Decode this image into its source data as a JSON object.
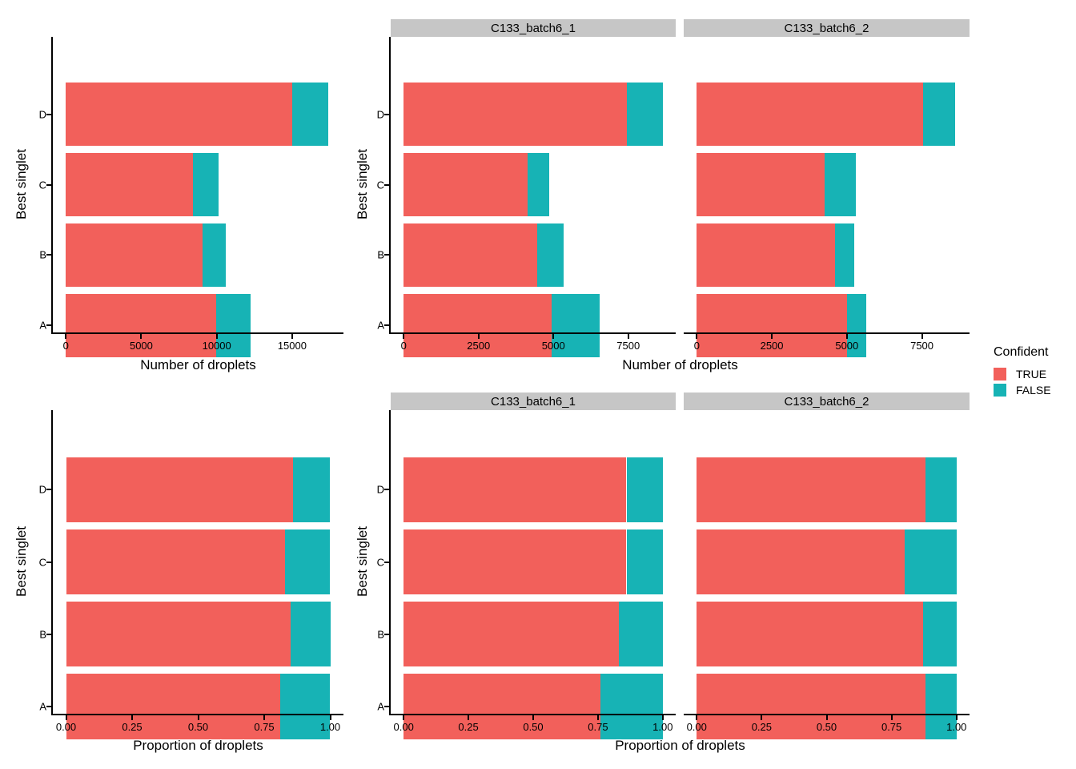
{
  "legend": {
    "title": "Confident",
    "position": "right",
    "items": [
      {
        "label": "TRUE",
        "color": "#F2605B"
      },
      {
        "label": "FALSE",
        "color": "#17B3B5"
      }
    ]
  },
  "strip_background": "#C6C6C6",
  "chart_data": [
    {
      "id": "counts-overall",
      "type": "bar",
      "orientation": "horizontal",
      "stacked": true,
      "grid": false,
      "title": "",
      "ylabel": "Best singlet",
      "xlabel": "Number of droplets",
      "categories_top_to_bottom": [
        "D",
        "C",
        "B",
        "A"
      ],
      "series_names": [
        "TRUE",
        "FALSE"
      ],
      "x_domain": [
        -860,
        18400
      ],
      "x_ticks": [
        {
          "value": 0,
          "label": "0"
        },
        {
          "value": 5000,
          "label": "5000"
        },
        {
          "value": 10000,
          "label": "10000"
        },
        {
          "value": 15000,
          "label": "15000"
        }
      ],
      "panels": [
        {
          "facet": null,
          "values": {
            "TRUE": {
              "D": 15000,
              "C": 8400,
              "B": 9050,
              "A": 9950
            },
            "FALSE": {
              "D": 2400,
              "C": 1750,
              "B": 1550,
              "A": 2300
            }
          }
        }
      ]
    },
    {
      "id": "counts-by-batch",
      "type": "bar",
      "orientation": "horizontal",
      "stacked": true,
      "grid": false,
      "title": "",
      "ylabel": "Best singlet",
      "xlabel": "Number of droplets",
      "categories_top_to_bottom": [
        "D",
        "C",
        "B",
        "A"
      ],
      "series_names": [
        "TRUE",
        "FALSE"
      ],
      "x_domain": [
        -435,
        9085
      ],
      "x_ticks": [
        {
          "value": 0,
          "label": "0"
        },
        {
          "value": 2500,
          "label": "2500"
        },
        {
          "value": 5000,
          "label": "5000"
        },
        {
          "value": 7500,
          "label": "7500"
        }
      ],
      "panels": [
        {
          "facet": "C133_batch6_1",
          "values": {
            "TRUE": {
              "D": 7450,
              "C": 4150,
              "B": 4450,
              "A": 4950
            },
            "FALSE": {
              "D": 1200,
              "C": 700,
              "B": 900,
              "A": 1600
            }
          }
        },
        {
          "facet": "C133_batch6_2",
          "values": {
            "TRUE": {
              "D": 7550,
              "C": 4250,
              "B": 4600,
              "A": 5000
            },
            "FALSE": {
              "D": 1050,
              "C": 1050,
              "B": 650,
              "A": 650
            }
          }
        }
      ]
    },
    {
      "id": "proportion-overall",
      "type": "bar",
      "orientation": "horizontal",
      "stacked": true,
      "grid": false,
      "title": "",
      "ylabel": "Best singlet",
      "xlabel": "Proportion of droplets",
      "categories_top_to_bottom": [
        "D",
        "C",
        "B",
        "A"
      ],
      "series_names": [
        "TRUE",
        "FALSE"
      ],
      "x_domain": [
        -0.05,
        1.05
      ],
      "x_ticks": [
        {
          "value": 0,
          "label": "0.00"
        },
        {
          "value": 0.25,
          "label": "0.25"
        },
        {
          "value": 0.5,
          "label": "0.50"
        },
        {
          "value": 0.75,
          "label": "0.75"
        },
        {
          "value": 1,
          "label": "1.00"
        }
      ],
      "panels": [
        {
          "facet": null,
          "values": {
            "TRUE": {
              "D": 0.86,
              "C": 0.83,
              "B": 0.85,
              "A": 0.81
            },
            "FALSE": {
              "D": 0.14,
              "C": 0.17,
              "B": 0.15,
              "A": 0.19
            }
          }
        }
      ]
    },
    {
      "id": "proportion-by-batch",
      "type": "bar",
      "orientation": "horizontal",
      "stacked": true,
      "grid": false,
      "title": "",
      "ylabel": "Best singlet",
      "xlabel": "Proportion of droplets",
      "categories_top_to_bottom": [
        "D",
        "C",
        "B",
        "A"
      ],
      "series_names": [
        "TRUE",
        "FALSE"
      ],
      "x_domain": [
        -0.05,
        1.05
      ],
      "x_ticks": [
        {
          "value": 0,
          "label": "0.00"
        },
        {
          "value": 0.25,
          "label": "0.25"
        },
        {
          "value": 0.5,
          "label": "0.50"
        },
        {
          "value": 0.75,
          "label": "0.75"
        },
        {
          "value": 1,
          "label": "1.00"
        }
      ],
      "panels": [
        {
          "facet": "C133_batch6_1",
          "values": {
            "TRUE": {
              "D": 0.86,
              "C": 0.86,
              "B": 0.83,
              "A": 0.76
            },
            "FALSE": {
              "D": 0.14,
              "C": 0.14,
              "B": 0.17,
              "A": 0.24
            }
          }
        },
        {
          "facet": "C133_batch6_2",
          "values": {
            "TRUE": {
              "D": 0.88,
              "C": 0.8,
              "B": 0.87,
              "A": 0.88
            },
            "FALSE": {
              "D": 0.12,
              "C": 0.2,
              "B": 0.13,
              "A": 0.12
            }
          }
        }
      ]
    }
  ]
}
